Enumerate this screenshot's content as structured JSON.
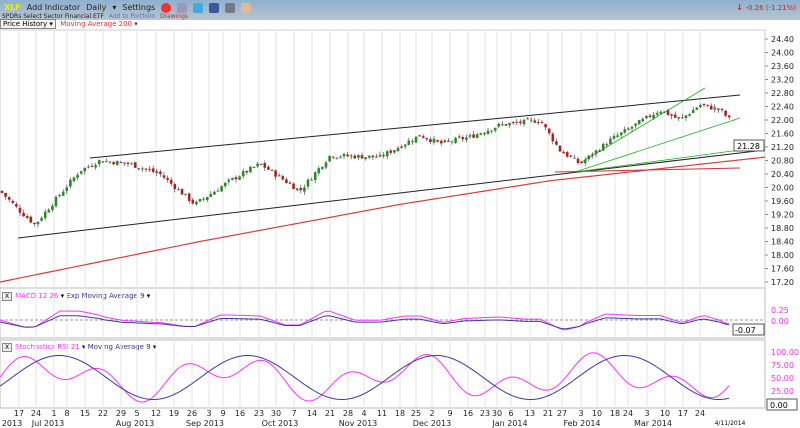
{
  "toolbar": {
    "symbol": "XLF",
    "add_indicator": "Add Indicator",
    "period": "Daily",
    "settings": "Settings",
    "change": "-0.26 (-1.21%)"
  },
  "subbar": {
    "name": "SPDRs Select Sector Financial ETF",
    "add_portfolio": "Add to Portfolio",
    "drawings": "Drawings"
  },
  "chart_header": {
    "price_select": "Price History ▾",
    "overlay": "Moving Average 200"
  },
  "macd_header": {
    "close": "X",
    "name": "MACD 12 26",
    "signal": "Exp Moving Average 9"
  },
  "stoch_header": {
    "close": "X",
    "name": "Stochastics RSI 21",
    "signal": "Moving Average 9"
  },
  "chart_data": {
    "type": "candlestick",
    "price_axis": {
      "min": 17.2,
      "max": 24.4,
      "step": 0.4,
      "ticks": [
        "24.40",
        "24.00",
        "23.60",
        "23.20",
        "22.80",
        "22.40",
        "22.00",
        "21.60",
        "21.20",
        "20.80",
        "20.40",
        "20.00",
        "19.60",
        "19.20",
        "18.80",
        "18.40",
        "18.00",
        "17.60",
        "17.20"
      ]
    },
    "last_price": "21.28",
    "closes_keypoints": [
      [
        0,
        19.9
      ],
      [
        20,
        19.3
      ],
      [
        35,
        18.9
      ],
      [
        60,
        19.8
      ],
      [
        80,
        20.5
      ],
      [
        100,
        20.8
      ],
      [
        130,
        20.7
      ],
      [
        160,
        20.4
      ],
      [
        195,
        19.5
      ],
      [
        230,
        20.2
      ],
      [
        260,
        20.7
      ],
      [
        300,
        19.9
      ],
      [
        330,
        20.95
      ],
      [
        380,
        20.9
      ],
      [
        420,
        21.55
      ],
      [
        440,
        21.3
      ],
      [
        470,
        21.5
      ],
      [
        500,
        21.85
      ],
      [
        540,
        22.0
      ],
      [
        560,
        21.1
      ],
      [
        580,
        20.7
      ],
      [
        610,
        21.4
      ],
      [
        660,
        22.3
      ],
      [
        680,
        22.0
      ],
      [
        700,
        22.45
      ],
      [
        720,
        22.3
      ],
      [
        735,
        21.85
      ],
      [
        745,
        21.28
      ]
    ],
    "ma200": [
      [
        0,
        17.2
      ],
      [
        200,
        18.4
      ],
      [
        400,
        19.5
      ],
      [
        550,
        20.2
      ],
      [
        765,
        20.9
      ]
    ],
    "macd_axis": {
      "labels": [
        "0.25",
        "0.00"
      ],
      "readout": "-0.07"
    },
    "stoch_axis": {
      "labels": [
        "100.00",
        "75.00",
        "50.00",
        "25.00"
      ],
      "readout": "0.00"
    },
    "day_labels": [
      "17",
      "24",
      "1",
      "8",
      "15",
      "22",
      "29",
      "5",
      "12",
      "19",
      "26",
      "3",
      "9",
      "16",
      "23",
      "30",
      "7",
      "14",
      "21",
      "28",
      "4",
      "11",
      "18",
      "25",
      "2",
      "9",
      "16",
      "23",
      "30",
      "6",
      "13",
      "21",
      "27",
      "3",
      "10",
      "18",
      "24",
      "3",
      "10",
      "17",
      "24"
    ],
    "month_labels": [
      "2013",
      "Jul 2013",
      "Aug 2013",
      "Sep 2013",
      "Oct 2013",
      "Nov 2013",
      "Dec 2013",
      "Jan 2014",
      "Feb 2014",
      "Mar 2014"
    ],
    "end_date": "4/11/2014"
  },
  "colors": {
    "up": "#2a8a2a",
    "down": "#b02020",
    "ma": "#d04040",
    "macd": "#ff33ff",
    "signal": "#3a3aa0",
    "neg": "#cc2222"
  }
}
